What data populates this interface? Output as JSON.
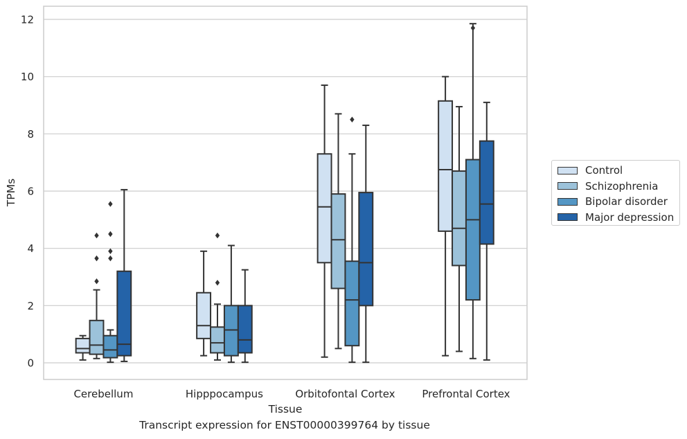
{
  "chart_data": {
    "type": "box",
    "caption": "Transcript expression for ENST00000399764 by tissue",
    "xlabel": "Tissue",
    "ylabel": "TPMs",
    "ylim": [
      -0.55,
      12.45
    ],
    "yticks": [
      0,
      2,
      4,
      6,
      8,
      10,
      12
    ],
    "grid": true,
    "legend_position": "right",
    "categories": [
      "Cerebellum",
      "Hipppocampus",
      "Orbitofontal Cortex",
      "Prefrontal Cortex"
    ],
    "series": [
      {
        "name": "Control",
        "color": "#d0e1f2",
        "boxes": [
          {
            "min": 0.1,
            "q1": 0.35,
            "median": 0.5,
            "q3": 0.85,
            "max": 0.95,
            "outliers": []
          },
          {
            "min": 0.25,
            "q1": 0.85,
            "median": 1.3,
            "q3": 2.45,
            "max": 3.9,
            "outliers": []
          },
          {
            "min": 0.2,
            "q1": 3.5,
            "median": 5.45,
            "q3": 7.3,
            "max": 9.7,
            "outliers": []
          },
          {
            "min": 0.25,
            "q1": 4.6,
            "median": 6.75,
            "q3": 9.15,
            "max": 10.0,
            "outliers": []
          }
        ]
      },
      {
        "name": "Schizophrenia",
        "color": "#9cc2da",
        "boxes": [
          {
            "min": 0.15,
            "q1": 0.3,
            "median": 0.62,
            "q3": 1.48,
            "max": 2.55,
            "outliers": [
              2.85,
              3.65,
              4.45
            ]
          },
          {
            "min": 0.1,
            "q1": 0.35,
            "median": 0.7,
            "q3": 1.25,
            "max": 2.05,
            "outliers": [
              2.8,
              4.45
            ]
          },
          {
            "min": 0.5,
            "q1": 2.6,
            "median": 4.3,
            "q3": 5.9,
            "max": 8.7,
            "outliers": []
          },
          {
            "min": 0.4,
            "q1": 3.4,
            "median": 4.7,
            "q3": 6.7,
            "max": 8.95,
            "outliers": []
          }
        ]
      },
      {
        "name": "Bipolar disorder",
        "color": "#5496c4",
        "boxes": [
          {
            "min": 0.02,
            "q1": 0.18,
            "median": 0.45,
            "q3": 0.95,
            "max": 1.15,
            "outliers": [
              3.65,
              3.9,
              4.5,
              5.55
            ]
          },
          {
            "min": 0.02,
            "q1": 0.25,
            "median": 1.15,
            "q3": 2.0,
            "max": 4.1,
            "outliers": []
          },
          {
            "min": 0.02,
            "q1": 0.6,
            "median": 2.2,
            "q3": 3.55,
            "max": 7.3,
            "outliers": [
              8.5
            ]
          },
          {
            "min": 0.15,
            "q1": 2.2,
            "median": 5.0,
            "q3": 7.1,
            "max": 11.85,
            "outliers": [
              11.7
            ]
          }
        ]
      },
      {
        "name": "Major depression",
        "color": "#2463a8",
        "boxes": [
          {
            "min": 0.05,
            "q1": 0.25,
            "median": 0.65,
            "q3": 3.2,
            "max": 6.05,
            "outliers": []
          },
          {
            "min": 0.02,
            "q1": 0.35,
            "median": 0.8,
            "q3": 2.0,
            "max": 3.25,
            "outliers": []
          },
          {
            "min": 0.02,
            "q1": 2.0,
            "median": 3.5,
            "q3": 5.95,
            "max": 8.3,
            "outliers": []
          },
          {
            "min": 0.1,
            "q1": 4.15,
            "median": 5.55,
            "q3": 7.75,
            "max": 9.1,
            "outliers": []
          }
        ]
      }
    ]
  }
}
